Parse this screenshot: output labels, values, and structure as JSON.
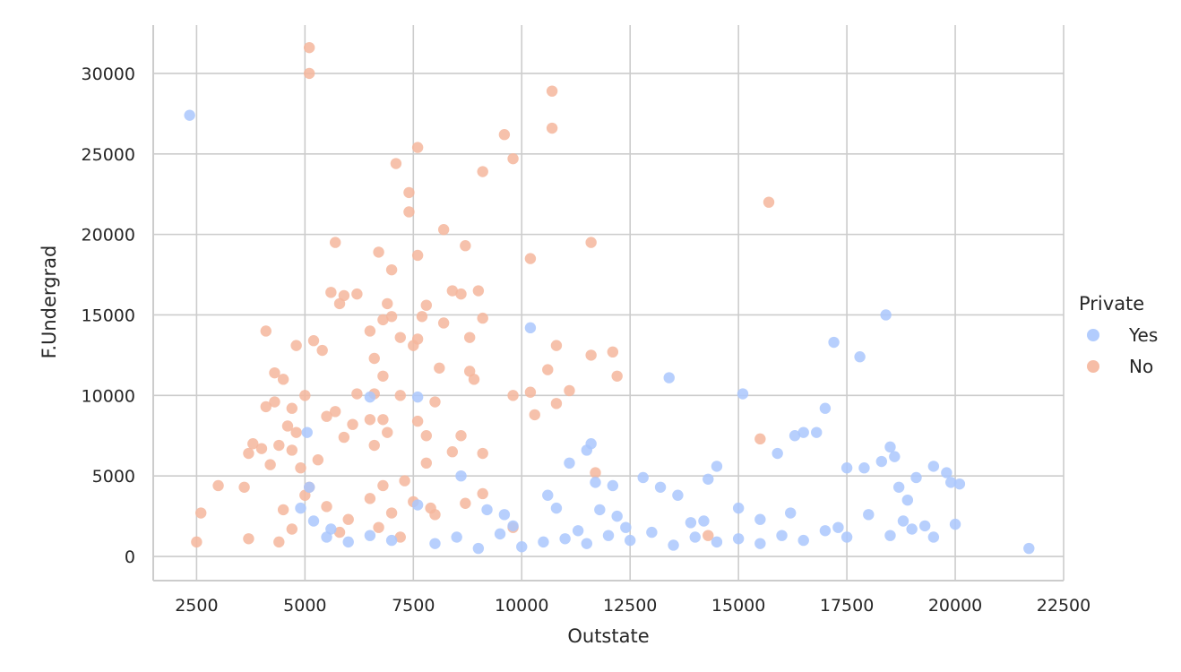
{
  "chart_data": {
    "type": "scatter",
    "title": "",
    "xlabel": "Outstate",
    "ylabel": "F.Undergrad",
    "xlim": [
      1500,
      22500
    ],
    "ylim": [
      -1500,
      33000
    ],
    "xticks": [
      2500,
      5000,
      7500,
      10000,
      12500,
      15000,
      17500,
      20000,
      22500
    ],
    "yticks": [
      0,
      5000,
      10000,
      15000,
      20000,
      25000,
      30000
    ],
    "grid": true,
    "legend": {
      "title": "Private",
      "placement": "right"
    },
    "series": [
      {
        "name": "Yes",
        "color": "#aac7fd",
        "points": [
          [
            2340,
            27400
          ],
          [
            5050,
            7700
          ],
          [
            5100,
            4300
          ],
          [
            5200,
            2200
          ],
          [
            4900,
            3000
          ],
          [
            5600,
            1700
          ],
          [
            6500,
            9900
          ],
          [
            7600,
            9900
          ],
          [
            7600,
            3200
          ],
          [
            8600,
            5000
          ],
          [
            9200,
            2900
          ],
          [
            9800,
            1900
          ],
          [
            10200,
            14200
          ],
          [
            11100,
            5800
          ],
          [
            11500,
            6600
          ],
          [
            11600,
            7000
          ],
          [
            11700,
            4600
          ],
          [
            12100,
            4400
          ],
          [
            12800,
            4900
          ],
          [
            13200,
            4300
          ],
          [
            13400,
            11100
          ],
          [
            14300,
            4800
          ],
          [
            14500,
            5600
          ],
          [
            15000,
            3000
          ],
          [
            15100,
            10100
          ],
          [
            15900,
            6400
          ],
          [
            16300,
            7500
          ],
          [
            16500,
            7700
          ],
          [
            16800,
            7700
          ],
          [
            17000,
            9200
          ],
          [
            17200,
            13300
          ],
          [
            17500,
            5500
          ],
          [
            17800,
            12400
          ],
          [
            17900,
            5500
          ],
          [
            18300,
            5900
          ],
          [
            18400,
            15000
          ],
          [
            18500,
            6800
          ],
          [
            18600,
            6200
          ],
          [
            18700,
            4300
          ],
          [
            18900,
            3500
          ],
          [
            19100,
            4900
          ],
          [
            19500,
            5600
          ],
          [
            19800,
            5200
          ],
          [
            19900,
            4600
          ],
          [
            20100,
            4500
          ],
          [
            21700,
            500
          ],
          [
            10000,
            600
          ],
          [
            10500,
            900
          ],
          [
            11000,
            1100
          ],
          [
            11500,
            800
          ],
          [
            12000,
            1300
          ],
          [
            12500,
            1000
          ],
          [
            13000,
            1500
          ],
          [
            13500,
            700
          ],
          [
            14000,
            1200
          ],
          [
            14500,
            900
          ],
          [
            15000,
            1100
          ],
          [
            15500,
            800
          ],
          [
            16000,
            1300
          ],
          [
            16500,
            1000
          ],
          [
            17000,
            1600
          ],
          [
            17500,
            1200
          ],
          [
            18000,
            2600
          ],
          [
            18500,
            1300
          ],
          [
            19000,
            1700
          ],
          [
            19500,
            1200
          ],
          [
            20000,
            2000
          ],
          [
            8000,
            800
          ],
          [
            8500,
            1200
          ],
          [
            9000,
            500
          ],
          [
            9500,
            1400
          ],
          [
            7000,
            1000
          ],
          [
            6500,
            1300
          ],
          [
            6000,
            900
          ],
          [
            5500,
            1200
          ],
          [
            12200,
            2500
          ],
          [
            13600,
            3800
          ],
          [
            14200,
            2200
          ],
          [
            11800,
            2900
          ],
          [
            10800,
            3000
          ],
          [
            16200,
            2700
          ],
          [
            17300,
            1800
          ],
          [
            18800,
            2200
          ],
          [
            19300,
            1900
          ],
          [
            15500,
            2300
          ],
          [
            9600,
            2600
          ],
          [
            10600,
            3800
          ],
          [
            12400,
            1800
          ],
          [
            13900,
            2100
          ],
          [
            11300,
            1600
          ]
        ]
      },
      {
        "name": "No",
        "color": "#f5b69c",
        "points": [
          [
            5100,
            31600
          ],
          [
            5100,
            30000
          ],
          [
            10700,
            28900
          ],
          [
            10700,
            26600
          ],
          [
            9600,
            26200
          ],
          [
            7600,
            25400
          ],
          [
            9800,
            24700
          ],
          [
            7100,
            24400
          ],
          [
            9100,
            23900
          ],
          [
            7400,
            22600
          ],
          [
            7400,
            21400
          ],
          [
            15700,
            22000
          ],
          [
            8200,
            20300
          ],
          [
            5700,
            19500
          ],
          [
            11600,
            19500
          ],
          [
            8700,
            19300
          ],
          [
            6700,
            18900
          ],
          [
            7600,
            18700
          ],
          [
            10200,
            18500
          ],
          [
            7000,
            17800
          ],
          [
            5600,
            16400
          ],
          [
            6200,
            16300
          ],
          [
            5900,
            16200
          ],
          [
            8400,
            16500
          ],
          [
            9000,
            16500
          ],
          [
            8600,
            16300
          ],
          [
            6900,
            15700
          ],
          [
            7800,
            15600
          ],
          [
            5800,
            15700
          ],
          [
            7700,
            14900
          ],
          [
            7000,
            14900
          ],
          [
            9100,
            14800
          ],
          [
            6800,
            14700
          ],
          [
            8200,
            14500
          ],
          [
            6500,
            14000
          ],
          [
            4100,
            14000
          ],
          [
            7600,
            13500
          ],
          [
            7500,
            13100
          ],
          [
            4800,
            13100
          ],
          [
            5200,
            13400
          ],
          [
            10800,
            13100
          ],
          [
            8800,
            13600
          ],
          [
            7200,
            13600
          ],
          [
            5400,
            12800
          ],
          [
            11600,
            12500
          ],
          [
            12100,
            12700
          ],
          [
            6600,
            12300
          ],
          [
            8100,
            11700
          ],
          [
            10600,
            11600
          ],
          [
            8800,
            11500
          ],
          [
            4300,
            11400
          ],
          [
            4500,
            11000
          ],
          [
            12200,
            11200
          ],
          [
            8900,
            11000
          ],
          [
            6800,
            11200
          ],
          [
            11100,
            10300
          ],
          [
            9800,
            10000
          ],
          [
            10200,
            10200
          ],
          [
            5000,
            10000
          ],
          [
            6200,
            10100
          ],
          [
            6600,
            10100
          ],
          [
            7200,
            10000
          ],
          [
            4300,
            9600
          ],
          [
            4100,
            9300
          ],
          [
            8000,
            9600
          ],
          [
            10800,
            9500
          ],
          [
            4700,
            9200
          ],
          [
            5700,
            9000
          ],
          [
            10300,
            8800
          ],
          [
            6100,
            8200
          ],
          [
            6800,
            8500
          ],
          [
            6500,
            8500
          ],
          [
            7600,
            8400
          ],
          [
            4600,
            8100
          ],
          [
            5500,
            8700
          ],
          [
            4800,
            7700
          ],
          [
            6900,
            7700
          ],
          [
            8600,
            7500
          ],
          [
            5900,
            7400
          ],
          [
            7800,
            7500
          ],
          [
            6600,
            6900
          ],
          [
            3800,
            7000
          ],
          [
            4000,
            6700
          ],
          [
            4700,
            6600
          ],
          [
            15500,
            7300
          ],
          [
            3700,
            6400
          ],
          [
            4400,
            6900
          ],
          [
            5300,
            6000
          ],
          [
            9100,
            6400
          ],
          [
            8400,
            6500
          ],
          [
            11700,
            5200
          ],
          [
            7800,
            5800
          ],
          [
            4900,
            5500
          ],
          [
            4200,
            5700
          ],
          [
            3600,
            4300
          ],
          [
            3000,
            4400
          ],
          [
            2600,
            2700
          ],
          [
            2500,
            900
          ],
          [
            3700,
            1100
          ],
          [
            4500,
            2900
          ],
          [
            5000,
            3800
          ],
          [
            5500,
            3100
          ],
          [
            6000,
            2300
          ],
          [
            6500,
            3600
          ],
          [
            7000,
            2700
          ],
          [
            7500,
            3400
          ],
          [
            8000,
            2600
          ],
          [
            4700,
            1700
          ],
          [
            4400,
            900
          ],
          [
            5800,
            1500
          ],
          [
            6700,
            1800
          ],
          [
            7200,
            1200
          ],
          [
            7900,
            3000
          ],
          [
            14300,
            1300
          ],
          [
            9800,
            1800
          ],
          [
            8700,
            3300
          ],
          [
            9100,
            3900
          ],
          [
            5100,
            4300
          ],
          [
            6800,
            4400
          ],
          [
            7300,
            4700
          ]
        ]
      }
    ]
  }
}
